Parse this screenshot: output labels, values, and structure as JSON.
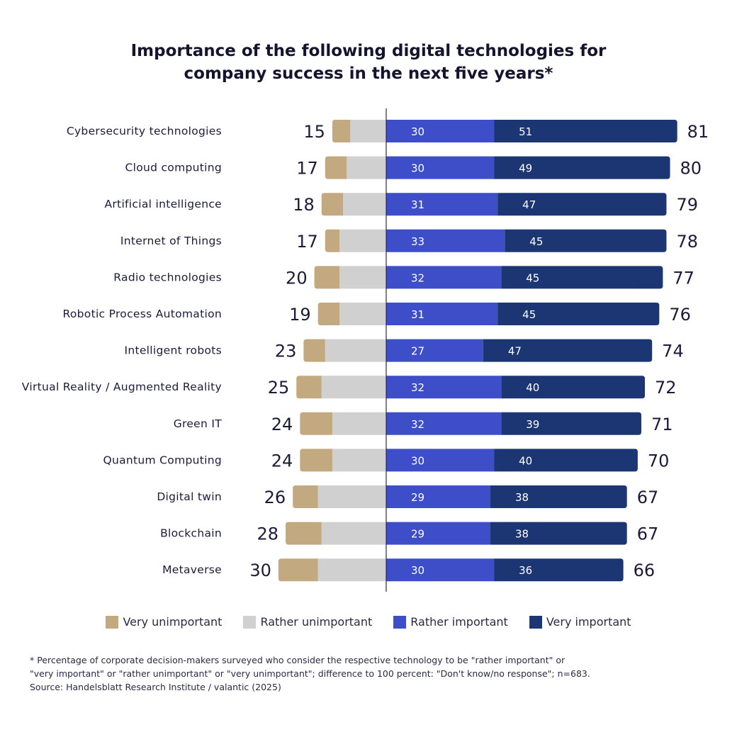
{
  "title_lines": [
    "Importance of the following digital technologies for",
    "company success in the next five years*"
  ],
  "colors": {
    "very_unimportant": "#c3a97f",
    "rather_unimportant": "#d0d0d0",
    "rather_important": "#3d4ec8",
    "very_important": "#1b3672",
    "axis": "#2a2a44",
    "text": "#1b1b3a"
  },
  "legend": [
    {
      "label": "Very unimportant",
      "color": "#c3a97f"
    },
    {
      "label": "Rather unimportant",
      "color": "#d0d0d0"
    },
    {
      "label": "Rather important",
      "color": "#3d4ec8"
    },
    {
      "label": "Very important",
      "color": "#1b3672"
    }
  ],
  "footnote": [
    "* Percentage of corporate decision-makers surveyed who consider the respective technology to be \"rather important\" or",
    "\"very important\" or \"rather unimportant\" or \"very unimportant\"; difference to 100 percent: \"Don't know/no response\"; n=683.",
    "Source: Handelsblatt Research Institute / valantic (2025)"
  ],
  "chart_data": {
    "type": "bar",
    "orientation": "horizontal-diverging-stacked",
    "title": "Importance of the following digital technologies for company success in the next five years*",
    "xlabel": "",
    "ylabel": "",
    "unit": "percent",
    "grid": false,
    "legend_position": "bottom",
    "categories": [
      "Cybersecurity technologies",
      "Cloud computing",
      "Artificial intelligence",
      "Internet of Things",
      "Radio technologies",
      "Robotic Process Automation",
      "Intelligent robots",
      "Virtual Reality / Augmented Reality",
      "Green IT",
      "Quantum Computing",
      "Digital twin",
      "Blockchain",
      "Metaverse"
    ],
    "series": [
      {
        "name": "Very unimportant",
        "side": "negative",
        "labeled": false,
        "values": [
          5,
          6,
          6,
          4,
          7,
          6,
          6,
          7,
          9,
          9,
          7,
          10,
          11
        ]
      },
      {
        "name": "Rather unimportant",
        "side": "negative",
        "labeled": false,
        "values": [
          10,
          11,
          12,
          13,
          13,
          13,
          17,
          18,
          15,
          15,
          19,
          18,
          19
        ]
      },
      {
        "name": "Rather important",
        "side": "positive",
        "labeled": true,
        "values": [
          30,
          30,
          31,
          33,
          32,
          31,
          27,
          32,
          32,
          30,
          29,
          29,
          30
        ]
      },
      {
        "name": "Very important",
        "side": "positive",
        "labeled": true,
        "values": [
          51,
          49,
          47,
          45,
          45,
          45,
          47,
          40,
          39,
          40,
          38,
          38,
          36
        ]
      }
    ],
    "totals_unimportant": [
      15,
      17,
      18,
      17,
      20,
      19,
      23,
      25,
      24,
      24,
      26,
      28,
      30
    ],
    "totals_important": [
      81,
      80,
      79,
      78,
      77,
      76,
      74,
      72,
      71,
      70,
      67,
      67,
      66
    ]
  }
}
